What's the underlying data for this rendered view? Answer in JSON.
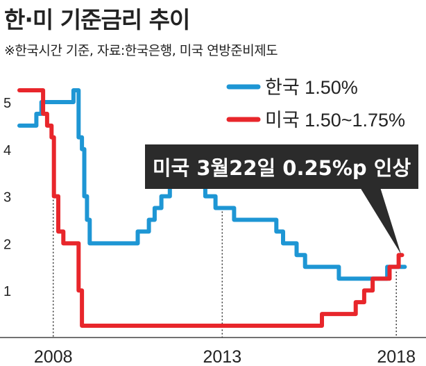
{
  "header": {
    "title": "한·미 기준금리 추이",
    "subtitle": "※한국시간 기준, 자료:한국은행, 미국 연방준비제도"
  },
  "colors": {
    "korea": "#1e96d4",
    "us": "#e8262b",
    "text": "#222222",
    "callout_bg": "#2b2b2b",
    "callout_text": "#ffffff"
  },
  "chart_data": {
    "type": "line",
    "title": "",
    "xlabel": "",
    "ylabel": "",
    "x_ticks": [
      "2008",
      "2013",
      "2018"
    ],
    "y_ticks": [
      "1",
      "2",
      "3",
      "4",
      "5"
    ],
    "xlim": [
      2007.0,
      2018.7
    ],
    "ylim": [
      0,
      5.25
    ],
    "grid": false,
    "legend_position": "top-right",
    "series": [
      {
        "name": "한국 1.50%",
        "color": "#1e96d4",
        "points": [
          [
            2007.0,
            4.5
          ],
          [
            2007.5,
            4.5
          ],
          [
            2007.5,
            4.75
          ],
          [
            2007.65,
            4.75
          ],
          [
            2007.65,
            5.0
          ],
          [
            2008.6,
            5.0
          ],
          [
            2008.6,
            5.25
          ],
          [
            2008.75,
            5.25
          ],
          [
            2008.75,
            4.25
          ],
          [
            2008.85,
            4.25
          ],
          [
            2008.85,
            4.0
          ],
          [
            2008.92,
            4.0
          ],
          [
            2008.92,
            3.0
          ],
          [
            2009.0,
            3.0
          ],
          [
            2009.0,
            2.5
          ],
          [
            2009.08,
            2.5
          ],
          [
            2009.08,
            2.0
          ],
          [
            2010.5,
            2.0
          ],
          [
            2010.5,
            2.25
          ],
          [
            2010.83,
            2.25
          ],
          [
            2010.83,
            2.5
          ],
          [
            2011.0,
            2.5
          ],
          [
            2011.0,
            2.75
          ],
          [
            2011.2,
            2.75
          ],
          [
            2011.2,
            3.0
          ],
          [
            2011.45,
            3.0
          ],
          [
            2011.45,
            3.25
          ],
          [
            2012.5,
            3.25
          ],
          [
            2012.5,
            3.0
          ],
          [
            2012.8,
            3.0
          ],
          [
            2012.8,
            2.75
          ],
          [
            2013.35,
            2.75
          ],
          [
            2013.35,
            2.5
          ],
          [
            2014.6,
            2.5
          ],
          [
            2014.6,
            2.25
          ],
          [
            2014.8,
            2.25
          ],
          [
            2014.8,
            2.0
          ],
          [
            2015.2,
            2.0
          ],
          [
            2015.2,
            1.75
          ],
          [
            2015.45,
            1.75
          ],
          [
            2015.45,
            1.5
          ],
          [
            2016.45,
            1.5
          ],
          [
            2016.45,
            1.25
          ],
          [
            2017.88,
            1.25
          ],
          [
            2017.88,
            1.5
          ],
          [
            2018.4,
            1.5
          ]
        ]
      },
      {
        "name": "미국 1.50~1.75%",
        "color": "#e8262b",
        "points": [
          [
            2007.0,
            5.25
          ],
          [
            2007.7,
            5.25
          ],
          [
            2007.7,
            4.75
          ],
          [
            2007.82,
            4.75
          ],
          [
            2007.82,
            4.5
          ],
          [
            2007.95,
            4.5
          ],
          [
            2007.95,
            4.25
          ],
          [
            2008.02,
            4.25
          ],
          [
            2008.02,
            3.0
          ],
          [
            2008.15,
            3.0
          ],
          [
            2008.15,
            2.25
          ],
          [
            2008.3,
            2.25
          ],
          [
            2008.3,
            2.0
          ],
          [
            2008.75,
            2.0
          ],
          [
            2008.75,
            1.0
          ],
          [
            2008.85,
            1.0
          ],
          [
            2008.85,
            0.25
          ],
          [
            2015.95,
            0.25
          ],
          [
            2015.95,
            0.5
          ],
          [
            2016.95,
            0.5
          ],
          [
            2016.95,
            0.75
          ],
          [
            2017.2,
            0.75
          ],
          [
            2017.2,
            1.0
          ],
          [
            2017.45,
            1.0
          ],
          [
            2017.45,
            1.25
          ],
          [
            2017.95,
            1.25
          ],
          [
            2017.95,
            1.5
          ],
          [
            2018.22,
            1.5
          ],
          [
            2018.22,
            1.75
          ],
          [
            2018.32,
            1.75
          ]
        ]
      }
    ],
    "dotted_guides": [
      "2008",
      "2013",
      "2018"
    ],
    "annotation": {
      "text": "미국 3월22일 0.25%p 인상",
      "target": [
        2018.24,
        1.75
      ]
    }
  }
}
